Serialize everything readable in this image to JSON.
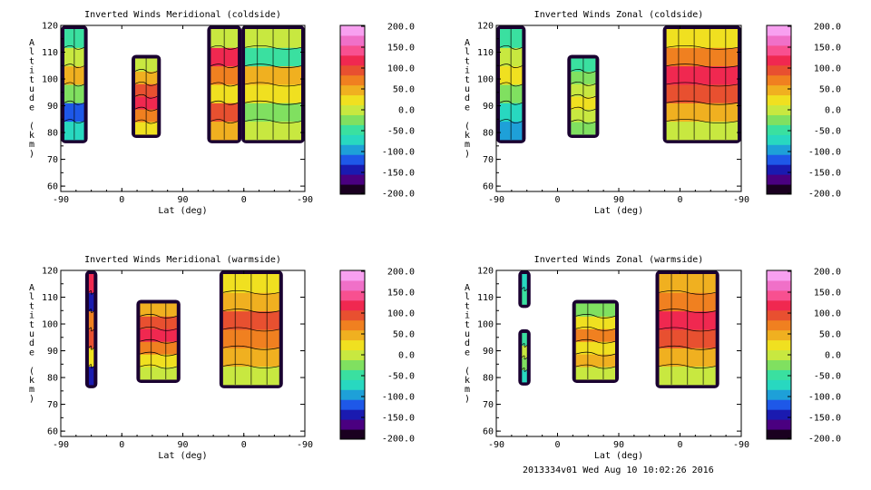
{
  "footer": {
    "stamp": "2013334v01 Wed Aug 10 10:02:26 2016"
  },
  "colorbar": {
    "ticks": [
      "200.0",
      "150.0",
      "100.0",
      "50.0",
      "0.0",
      "-50.0",
      "-100.0",
      "-150.0",
      "-200.0"
    ],
    "colors": [
      "#1a0020",
      "#4a0080",
      "#1a1ab0",
      "#1e58e8",
      "#1ea0d8",
      "#28d8c0",
      "#3ae0a0",
      "#80e060",
      "#c8e840",
      "#f0e020",
      "#f0b020",
      "#f08020",
      "#e85030",
      "#f02850",
      "#f85090",
      "#f070c8",
      "#f8a0f0"
    ],
    "range": [
      -200,
      200
    ]
  },
  "chart_data": [
    {
      "type": "heatmap",
      "title": "Inverted Winds Meridional (coldside)",
      "xlabel": "Lat (deg)",
      "ylabel": "Altitude (km)",
      "xticks": [
        "-90",
        "0",
        "90",
        "0",
        "-90"
      ],
      "yticks": [
        "60",
        "70",
        "80",
        "90",
        "100",
        "110",
        "120"
      ],
      "ylim": [
        58,
        120
      ],
      "blocks": [
        {
          "x": [
            0.0,
            0.11
          ],
          "y": [
            76,
            120
          ],
          "cls": [
            3,
            1,
            5,
            8,
            6,
            4
          ]
        },
        {
          "x": [
            0.29,
            0.41
          ],
          "y": [
            78,
            109
          ],
          "cls": [
            7,
            9,
            11,
            10,
            8,
            6
          ]
        },
        {
          "x": [
            0.6,
            0.74
          ],
          "y": [
            76,
            120
          ],
          "cls": [
            8,
            10,
            7,
            9,
            11,
            6
          ]
        },
        {
          "x": [
            0.74,
            1.0
          ],
          "y": [
            76,
            120
          ],
          "cls": [
            6,
            5,
            7,
            8,
            4,
            6
          ]
        }
      ]
    },
    {
      "type": "heatmap",
      "title": "Inverted Winds Zonal (coldside)",
      "xlabel": "Lat (deg)",
      "ylabel": "Altitude (km)",
      "xticks": [
        "-90",
        "0",
        "90",
        "0",
        "-90"
      ],
      "yticks": [
        "60",
        "70",
        "80",
        "90",
        "100",
        "110",
        "120"
      ],
      "ylim": [
        58,
        120
      ],
      "blocks": [
        {
          "x": [
            0.0,
            0.12
          ],
          "y": [
            76,
            120
          ],
          "cls": [
            2,
            3,
            5,
            7,
            6,
            4
          ]
        },
        {
          "x": [
            0.29,
            0.42
          ],
          "y": [
            78,
            109
          ],
          "cls": [
            5,
            6,
            7,
            6,
            5,
            4
          ]
        },
        {
          "x": [
            0.68,
            1.0
          ],
          "y": [
            76,
            120
          ],
          "cls": [
            6,
            8,
            10,
            11,
            9,
            7
          ]
        }
      ]
    },
    {
      "type": "heatmap",
      "title": "Inverted Winds Meridional (warmside)",
      "xlabel": "Lat (deg)",
      "ylabel": "Altitude (km)",
      "xticks": [
        "-90",
        "0",
        "90",
        "0",
        "-90"
      ],
      "yticks": [
        "60",
        "70",
        "80",
        "90",
        "100",
        "110",
        "120"
      ],
      "ylim": [
        58,
        120
      ],
      "blocks": [
        {
          "x": [
            0.1,
            0.15
          ],
          "y": [
            76,
            120
          ],
          "cls": [
            0,
            7,
            10,
            9,
            0,
            11
          ]
        },
        {
          "x": [
            0.31,
            0.49
          ],
          "y": [
            78,
            109
          ],
          "cls": [
            6,
            7,
            9,
            11,
            10,
            8
          ]
        },
        {
          "x": [
            0.65,
            0.91
          ],
          "y": [
            76,
            120
          ],
          "cls": [
            6,
            8,
            9,
            10,
            8,
            7
          ]
        }
      ]
    },
    {
      "type": "heatmap",
      "title": "Inverted Winds Zonal (warmside)",
      "xlabel": "Lat (deg)",
      "ylabel": "Altitude (km)",
      "xticks": [
        "-90",
        "0",
        "90",
        "0",
        "-90"
      ],
      "yticks": [
        "60",
        "70",
        "80",
        "90",
        "100",
        "110",
        "120"
      ],
      "ylim": [
        58,
        120
      ],
      "blocks": [
        {
          "x": [
            0.09,
            0.14
          ],
          "y": [
            77,
            98
          ],
          "cls": [
            3,
            5,
            6,
            4
          ]
        },
        {
          "x": [
            0.09,
            0.14
          ],
          "y": [
            106,
            120
          ],
          "cls": [
            4,
            3
          ]
        },
        {
          "x": [
            0.31,
            0.5
          ],
          "y": [
            78,
            109
          ],
          "cls": [
            6,
            8,
            7,
            9,
            7,
            5
          ]
        },
        {
          "x": [
            0.65,
            0.91
          ],
          "y": [
            76,
            120
          ],
          "cls": [
            6,
            8,
            10,
            11,
            9,
            8
          ]
        }
      ]
    }
  ]
}
